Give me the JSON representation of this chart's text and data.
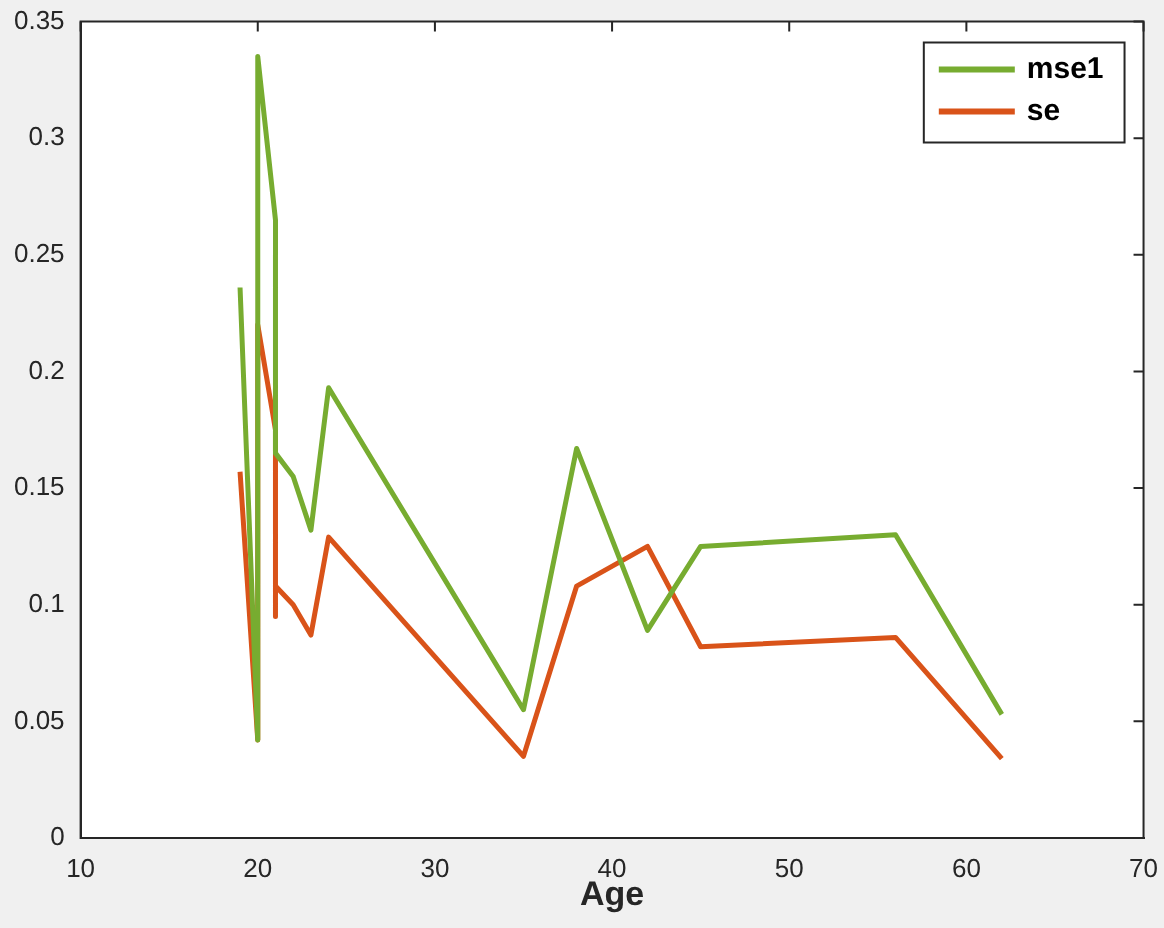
{
  "chart_data": {
    "type": "line",
    "xlabel": "Age",
    "x": [
      19,
      20,
      20,
      21,
      21,
      21,
      22,
      23,
      24,
      35,
      38,
      42,
      45,
      56,
      62
    ],
    "series": [
      {
        "name": "mse1",
        "color": "#77ac30",
        "values": [
          0.236,
          0.042,
          0.335,
          0.265,
          0.165,
          0.165,
          0.155,
          0.132,
          0.193,
          0.055,
          0.167,
          0.089,
          0.125,
          0.13,
          0.053
        ]
      },
      {
        "name": "se",
        "color": "#d95319",
        "values": [
          0.157,
          0.042,
          0.22,
          0.175,
          0.095,
          0.108,
          0.1,
          0.087,
          0.129,
          0.035,
          0.108,
          0.125,
          0.082,
          0.086,
          0.034
        ]
      }
    ],
    "xlim": [
      10,
      70
    ],
    "xticks": [
      10,
      20,
      30,
      40,
      50,
      60,
      70
    ],
    "ylim": [
      0,
      0.35
    ],
    "yticks": [
      0,
      0.05,
      0.1,
      0.15,
      0.2,
      0.25,
      0.3,
      0.35
    ],
    "grid": false,
    "legend": "top right",
    "marker": "none",
    "line_style": "solid"
  }
}
